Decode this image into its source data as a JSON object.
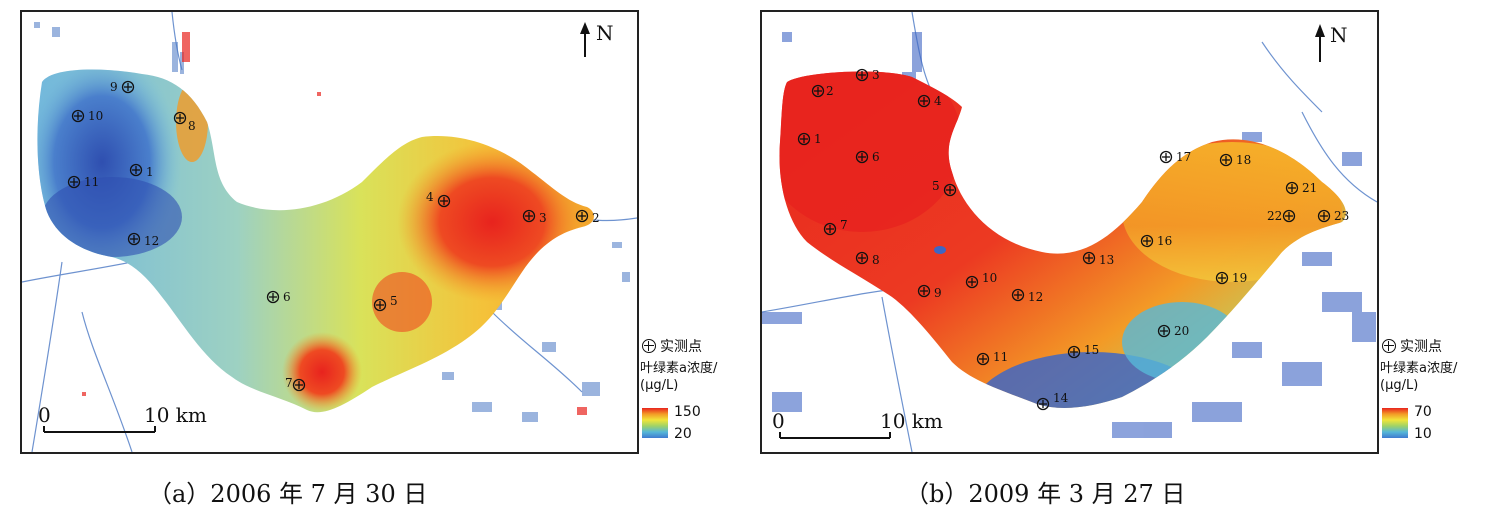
{
  "colors": {
    "water_channel": "#4a78c4",
    "high": "#e8231e",
    "orange": "#f39a26",
    "yellow": "#f1e43a",
    "green": "#9fd267",
    "cyan": "#57b8d8",
    "blue": "#3f66c4",
    "deep_blue": "#2f4fb0"
  },
  "panels": [
    {
      "id": "a",
      "caption": "（a）2006 年 7 月 30 日",
      "north_label": "N",
      "scale_zero": "0",
      "scale_end": "10 km",
      "legend_point_label": "实测点",
      "legend_title_line1": "叶绿素a浓度/",
      "legend_title_line2": "(μg/L)",
      "legend_max": "150",
      "legend_min": "20",
      "points": [
        "9",
        "10",
        "8",
        "1",
        "11",
        "12",
        "4",
        "3",
        "2",
        "6",
        "5",
        "7"
      ]
    },
    {
      "id": "b",
      "caption": "（b）2009 年 3 月 27 日",
      "north_label": "N",
      "scale_zero": "0",
      "scale_end": "10 km",
      "legend_point_label": "实测点",
      "legend_title_line1": "叶绿素a浓度/",
      "legend_title_line2": "(μg/L)",
      "legend_max": "70",
      "legend_min": "10",
      "points": [
        "3",
        "2",
        "4",
        "1",
        "6",
        "5",
        "7",
        "8",
        "9",
        "10",
        "12",
        "13",
        "16",
        "17",
        "18",
        "21",
        "22",
        "23",
        "19",
        "20",
        "11",
        "15",
        "14"
      ]
    }
  ]
}
